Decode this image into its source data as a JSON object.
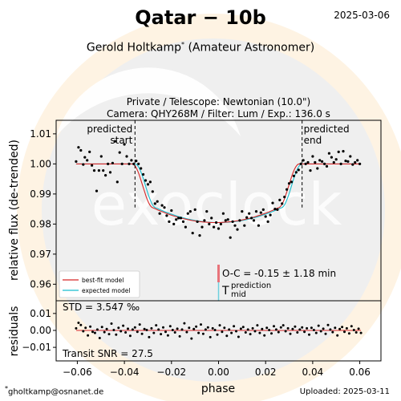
{
  "header": {
    "title": "Qatar − 10b",
    "date": "2025-03-06",
    "observer_name": "Gerold Holtkamp",
    "observer_mark": "*",
    "observer_role": "(Amateur Astronomer)",
    "setup_line1": "Private / Telescope: Newtonian (10.0\")",
    "setup_line2": "Camera: QHY268M / Filter: Lum / Exp.: 136.0 s"
  },
  "footer": {
    "email_mark": "*",
    "email": "gholtkamp@osnanet.de",
    "uploaded": "Uploaded: 2025-03-11"
  },
  "watermark": {
    "logo_text": "exoclock",
    "bg_color": "#fef3e3",
    "circle_color": "#f0f0f0"
  },
  "chart_data": [
    {
      "type": "scatter",
      "panel": "main",
      "xlim": [
        -0.069,
        0.069
      ],
      "ylim": [
        0.9545,
        1.0145
      ],
      "yticks": [
        0.96,
        0.97,
        0.98,
        0.99,
        1.0,
        1.01
      ],
      "ytick_labels": [
        "0.96",
        "0.97",
        "0.98",
        "0.99",
        "1.00",
        "1.01"
      ],
      "ylabel": "relative flux (de-trended)",
      "annotations": {
        "start_label": "predicted\nstart",
        "end_label": "predicted\nend",
        "start_x": -0.0355,
        "end_x": 0.0355,
        "oc_text": "O-C = -0.15 ± 1.18 min",
        "tmid_T": "T",
        "tmid_sup": "prediction",
        "tmid_sub": "mid"
      },
      "legend": {
        "position": "lower-left",
        "entries": [
          {
            "label": "best-fit model",
            "color": "#d62728"
          },
          {
            "label": "expected model",
            "color": "#17becf"
          }
        ]
      },
      "model": {
        "baseline": 1.0,
        "depth": 0.0195,
        "t1": 0.0355,
        "t2": 0.0265,
        "best_fit_shift": -0.0012
      },
      "points": [
        [
          -0.0605,
          1.0008
        ],
        [
          -0.0595,
          1.0055
        ],
        [
          -0.0585,
          1.0045
        ],
        [
          -0.0575,
          0.9998
        ],
        [
          -0.0568,
          1.0022
        ],
        [
          -0.0558,
          1.0012
        ],
        [
          -0.0548,
          1.004
        ],
        [
          -0.0538,
          0.9995
        ],
        [
          -0.0528,
          0.9978
        ],
        [
          -0.0518,
          0.991
        ],
        [
          -0.0508,
          0.9978
        ],
        [
          -0.0498,
          1.0025
        ],
        [
          -0.049,
          0.9978
        ],
        [
          -0.048,
          0.9962
        ],
        [
          -0.047,
          1.0
        ],
        [
          -0.046,
          0.9972
        ],
        [
          -0.045,
          1.0003
        ],
        [
          -0.044,
          1.0075
        ],
        [
          -0.043,
          0.994
        ],
        [
          -0.042,
          1.0038
        ],
        [
          -0.041,
          1.0
        ],
        [
          -0.04,
          1.0065
        ],
        [
          -0.039,
          1.0025
        ],
        [
          -0.038,
          1.0
        ],
        [
          -0.037,
          1.0012
        ],
        [
          -0.036,
          1.0
        ],
        [
          -0.035,
          1.001
        ],
        [
          -0.034,
          1.0
        ],
        [
          -0.033,
          0.9985
        ],
        [
          -0.032,
          0.9965
        ],
        [
          -0.031,
          0.9945
        ],
        [
          -0.03,
          0.9932
        ],
        [
          -0.029,
          0.994
        ],
        [
          -0.028,
          0.9908
        ],
        [
          -0.027,
          0.9868
        ],
        [
          -0.026,
          0.9875
        ],
        [
          -0.025,
          0.9835
        ],
        [
          -0.024,
          0.9862
        ],
        [
          -0.023,
          0.9855
        ],
        [
          -0.022,
          0.9828
        ],
        [
          -0.021,
          0.9808
        ],
        [
          -0.02,
          0.9845
        ],
        [
          -0.019,
          0.98
        ],
        [
          -0.018,
          0.9815
        ],
        [
          -0.017,
          0.982
        ],
        [
          -0.016,
          0.982
        ],
        [
          -0.015,
          0.9808
        ],
        [
          -0.014,
          0.979
        ],
        [
          -0.013,
          0.9835
        ],
        [
          -0.012,
          0.9842
        ],
        [
          -0.011,
          0.977
        ],
        [
          -0.01,
          0.9848
        ],
        [
          -0.009,
          0.9808
        ],
        [
          -0.008,
          0.9762
        ],
        [
          -0.007,
          0.979
        ],
        [
          -0.006,
          0.9812
        ],
        [
          -0.005,
          0.9842
        ],
        [
          -0.004,
          0.98
        ],
        [
          -0.003,
          0.982
        ],
        [
          -0.002,
          0.979
        ],
        [
          -0.001,
          0.9805
        ],
        [
          0.0,
          0.9785
        ],
        [
          0.001,
          0.98
        ],
        [
          0.002,
          0.9835
        ],
        [
          0.003,
          0.9812
        ],
        [
          0.004,
          0.9815
        ],
        [
          0.005,
          0.9755
        ],
        [
          0.006,
          0.9808
        ],
        [
          0.007,
          0.9795
        ],
        [
          0.008,
          0.9782
        ],
        [
          0.009,
          0.9812
        ],
        [
          0.01,
          0.9842
        ],
        [
          0.011,
          0.9795
        ],
        [
          0.012,
          0.9822
        ],
        [
          0.013,
          0.9835
        ],
        [
          0.014,
          0.982
        ],
        [
          0.015,
          0.9812
        ],
        [
          0.016,
          0.9842
        ],
        [
          0.017,
          0.9795
        ],
        [
          0.018,
          0.9838
        ],
        [
          0.019,
          0.9848
        ],
        [
          0.02,
          0.9825
        ],
        [
          0.021,
          0.9808
        ],
        [
          0.022,
          0.983
        ],
        [
          0.023,
          0.987
        ],
        [
          0.024,
          0.985
        ],
        [
          0.025,
          0.9848
        ],
        [
          0.026,
          0.988
        ],
        [
          0.027,
          0.9868
        ],
        [
          0.028,
          0.989
        ],
        [
          0.029,
          0.9915
        ],
        [
          0.03,
          0.9935
        ],
        [
          0.031,
          0.994
        ],
        [
          0.032,
          0.996
        ],
        [
          0.033,
          0.9972
        ],
        [
          0.034,
          0.998
        ],
        [
          0.035,
          1.0
        ],
        [
          0.036,
          1.0012
        ],
        [
          0.037,
          1.0
        ],
        [
          0.038,
          1.0005
        ],
        [
          0.039,
          0.9978
        ],
        [
          0.04,
          1.0025
        ],
        [
          0.041,
          1.0005
        ],
        [
          0.042,
          0.9985
        ],
        [
          0.043,
          1.0012
        ],
        [
          0.044,
          1.0008
        ],
        [
          0.045,
          1.0
        ],
        [
          0.046,
          0.9992
        ],
        [
          0.047,
          1.0035
        ],
        [
          0.048,
          1.0022
        ],
        [
          0.049,
          1.0005
        ],
        [
          0.05,
          1.0015
        ],
        [
          0.051,
          1.004
        ],
        [
          0.052,
          1.0
        ],
        [
          0.053,
          1.0042
        ],
        [
          0.054,
          1.001
        ],
        [
          0.055,
          1.0008
        ],
        [
          0.056,
          1.0025
        ],
        [
          0.057,
          0.9998
        ],
        [
          0.058,
          1.0005
        ],
        [
          0.059,
          1.0012
        ],
        [
          0.06,
          1.0
        ]
      ]
    },
    {
      "type": "scatter",
      "panel": "residuals",
      "xlim": [
        -0.069,
        0.069
      ],
      "ylim": [
        -0.018,
        0.0175
      ],
      "xticks": [
        -0.06,
        -0.04,
        -0.02,
        0.0,
        0.02,
        0.04,
        0.06
      ],
      "xtick_labels": [
        "−0.06",
        "−0.04",
        "−0.02",
        "0.00",
        "0.02",
        "0.04",
        "0.06"
      ],
      "yticks": [
        -0.01,
        0.0,
        0.01
      ],
      "ytick_labels": [
        "−0.01",
        "0.00",
        "0.01"
      ],
      "xlabel": "phase",
      "ylabel": "residuals",
      "std_text": "STD = 3.547 ‰",
      "snr_text": "Transit SNR = 27.5",
      "points": [
        [
          -0.0605,
          0.0012
        ],
        [
          -0.0595,
          0.0045
        ],
        [
          -0.0585,
          0.0032
        ],
        [
          -0.0575,
          -0.0005
        ],
        [
          -0.0565,
          0.0015
        ],
        [
          -0.0555,
          -0.003
        ],
        [
          -0.0545,
          0.0022
        ],
        [
          -0.0535,
          -0.0008
        ],
        [
          -0.0525,
          -0.0015
        ],
        [
          -0.0515,
          0.0005
        ],
        [
          -0.0505,
          -0.0045
        ],
        [
          -0.0495,
          0.002
        ],
        [
          -0.0485,
          -0.001
        ],
        [
          -0.0475,
          0.0008
        ],
        [
          -0.0465,
          -0.0022
        ],
        [
          -0.0455,
          0.004
        ],
        [
          -0.0445,
          0.0002
        ],
        [
          -0.0435,
          -0.0025
        ],
        [
          -0.0425,
          0.0015
        ],
        [
          -0.0415,
          -0.0005
        ],
        [
          -0.0405,
          0.0028
        ],
        [
          -0.0395,
          -0.0012
        ],
        [
          -0.0385,
          0.001
        ],
        [
          -0.0375,
          -0.0032
        ],
        [
          -0.0365,
          0.0005
        ],
        [
          -0.0355,
          0.0018
        ],
        [
          -0.0345,
          -0.0008
        ],
        [
          -0.0335,
          0.0035
        ],
        [
          -0.0325,
          -0.002
        ],
        [
          -0.0315,
          0.0008
        ],
        [
          -0.0305,
          0.0002
        ],
        [
          -0.0295,
          -0.004
        ],
        [
          -0.0285,
          0.0012
        ],
        [
          -0.0275,
          -0.0015
        ],
        [
          -0.0265,
          0.003
        ],
        [
          -0.0255,
          0.0005
        ],
        [
          -0.0245,
          -0.0022
        ],
        [
          -0.0235,
          0.0018
        ],
        [
          -0.0225,
          -0.0008
        ],
        [
          -0.0215,
          -0.003
        ],
        [
          -0.0205,
          0.0025
        ],
        [
          -0.0195,
          0.0002
        ],
        [
          -0.0185,
          -0.0012
        ],
        [
          -0.0175,
          0.001
        ],
        [
          -0.0165,
          -0.0035
        ],
        [
          -0.0155,
          0.0005
        ],
        [
          -0.0145,
          0.0042
        ],
        [
          -0.0135,
          -0.001
        ],
        [
          -0.0125,
          0.0015
        ],
        [
          -0.0115,
          -0.0048
        ],
        [
          -0.0105,
          0.0008
        ],
        [
          -0.0095,
          0.0022
        ],
        [
          -0.0085,
          -0.0015
        ],
        [
          -0.0075,
          0.0035
        ],
        [
          -0.0065,
          -0.002
        ],
        [
          -0.0055,
          0.0005
        ],
        [
          -0.0045,
          0.0018
        ],
        [
          -0.0035,
          -0.004
        ],
        [
          -0.0025,
          0.0012
        ],
        [
          -0.0015,
          0.0002
        ],
        [
          -0.0005,
          -0.0025
        ],
        [
          0.0005,
          0.003
        ],
        [
          0.0015,
          -0.0008
        ],
        [
          0.0025,
          0.0015
        ],
        [
          0.0035,
          -0.0032
        ],
        [
          0.0045,
          0.0005
        ],
        [
          0.0055,
          -0.0015
        ],
        [
          0.0065,
          0.0025
        ],
        [
          0.0075,
          -0.0005
        ],
        [
          0.0085,
          -0.0038
        ],
        [
          0.0095,
          0.001
        ],
        [
          0.0105,
          0.002
        ],
        [
          0.0115,
          -0.0012
        ],
        [
          0.0125,
          0.0005
        ],
        [
          0.0135,
          -0.0022
        ],
        [
          0.0145,
          0.0012
        ],
        [
          0.0155,
          -0.0005
        ],
        [
          0.0165,
          0.003
        ],
        [
          0.0175,
          -0.0015
        ],
        [
          0.0185,
          0.0008
        ],
        [
          0.0195,
          -0.003
        ],
        [
          0.0205,
          0.0015
        ],
        [
          0.0215,
          0.0002
        ],
        [
          0.0225,
          -0.0018
        ],
        [
          0.0235,
          0.0025
        ],
        [
          0.0245,
          0.0005
        ],
        [
          0.0255,
          -0.001
        ],
        [
          0.0265,
          0.0018
        ],
        [
          0.0275,
          0.003
        ],
        [
          0.0285,
          -0.0005
        ],
        [
          0.0295,
          0.0012
        ],
        [
          0.0305,
          -0.002
        ],
        [
          0.0315,
          0.0008
        ],
        [
          0.0325,
          0.0022
        ],
        [
          0.0335,
          -0.0012
        ],
        [
          0.0345,
          0.0005
        ],
        [
          0.0355,
          0.0018
        ],
        [
          0.0365,
          -0.0008
        ],
        [
          0.0375,
          0.0012
        ],
        [
          0.0385,
          -0.0025
        ],
        [
          0.0395,
          0.0015
        ],
        [
          0.0405,
          0.0002
        ],
        [
          0.0415,
          -0.0015
        ],
        [
          0.0425,
          0.0028
        ],
        [
          0.0435,
          -0.0005
        ],
        [
          0.0445,
          0.001
        ],
        [
          0.0455,
          -0.002
        ],
        [
          0.0465,
          0.0032
        ],
        [
          0.0475,
          0.0005
        ],
        [
          0.0485,
          -0.001
        ],
        [
          0.0495,
          0.0015
        ],
        [
          0.0505,
          -0.003
        ],
        [
          0.0515,
          0.0008
        ],
        [
          0.0525,
          0.002
        ],
        [
          0.0535,
          -0.0008
        ],
        [
          0.0545,
          0.0012
        ],
        [
          0.0555,
          -0.0018
        ],
        [
          0.0565,
          0.0025
        ],
        [
          0.0575,
          0.0002
        ],
        [
          0.0585,
          -0.0012
        ],
        [
          0.0595,
          0.001
        ],
        [
          0.0605,
          -0.0015
        ]
      ]
    }
  ]
}
